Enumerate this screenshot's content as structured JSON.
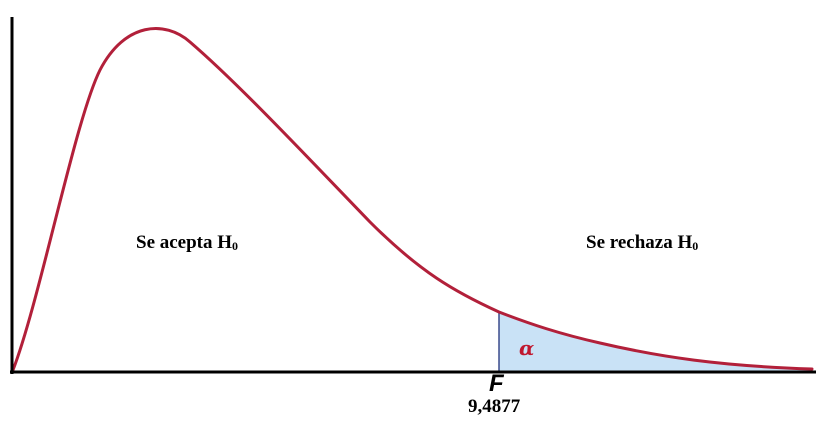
{
  "diagram": {
    "accept_region": {
      "text": "Se acepta H",
      "subscript": "0"
    },
    "reject_region": {
      "text": "Se rechaza H",
      "subscript": "0"
    },
    "alpha_symbol": "α",
    "statistic_symbol": "F",
    "critical_value": "9,4877"
  },
  "colors": {
    "curve": "#b2203a",
    "rejection_fill": "#c9e2f6",
    "critical_line": "#3a4a8c",
    "axes": "#000000",
    "alpha_text": "#c0182f"
  }
}
